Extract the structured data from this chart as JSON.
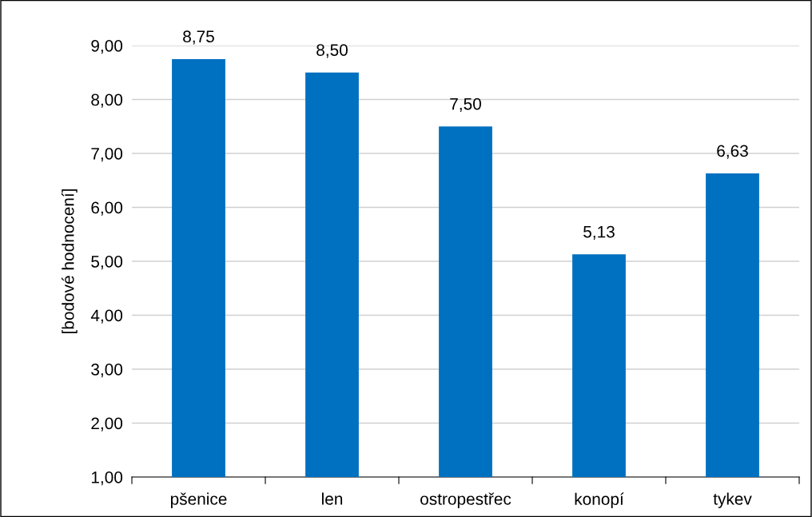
{
  "chart_data": {
    "type": "bar",
    "ylabel": "[bodové hodnocení]",
    "categories": [
      "pšenice",
      "len",
      "ostropestřec",
      "konopí",
      "tykev"
    ],
    "values": [
      8.75,
      8.5,
      7.5,
      5.13,
      6.63
    ],
    "value_labels": [
      "8,75",
      "8,50",
      "7,50",
      "5,13",
      "6,63"
    ],
    "color": "#0070c0",
    "ylim": [
      1,
      9
    ],
    "yticks": [
      {
        "value": 1,
        "label": "1,00"
      },
      {
        "value": 2,
        "label": "2,00"
      },
      {
        "value": 3,
        "label": "3,00"
      },
      {
        "value": 4,
        "label": "4,00"
      },
      {
        "value": 5,
        "label": "5,00"
      },
      {
        "value": 6,
        "label": "6,00"
      },
      {
        "value": 7,
        "label": "7,00"
      },
      {
        "value": 8,
        "label": "8,00"
      },
      {
        "value": 9,
        "label": "9,00"
      }
    ],
    "grid": "y"
  }
}
